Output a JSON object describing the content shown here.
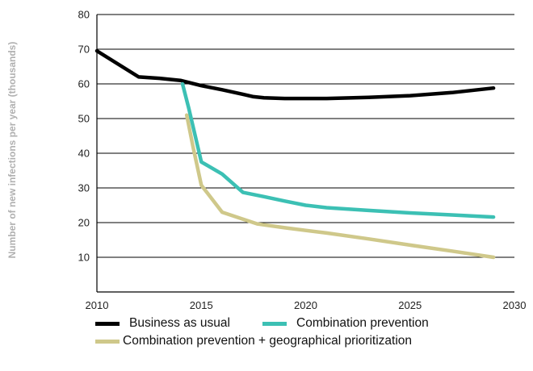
{
  "chart_data": {
    "type": "line",
    "title": "",
    "xlabel": "",
    "ylabel": "Number of new infections per year (thousands)",
    "xlim": [
      2010,
      2030
    ],
    "ylim": [
      0,
      80
    ],
    "x_ticks": [
      2010,
      2015,
      2020,
      2025,
      2030
    ],
    "y_ticks": [
      10,
      20,
      30,
      40,
      50,
      60,
      70,
      80
    ],
    "grid": "horizontal",
    "legend_position": "bottom",
    "series": [
      {
        "name": "Business as usual",
        "color": "#000000",
        "points": [
          [
            2010,
            69.5
          ],
          [
            2012,
            62
          ],
          [
            2013,
            61.6
          ],
          [
            2014,
            61
          ],
          [
            2015,
            59.5
          ],
          [
            2016,
            58.3
          ],
          [
            2017,
            57
          ],
          [
            2017.5,
            56.3
          ],
          [
            2018,
            56
          ],
          [
            2019,
            55.8
          ],
          [
            2021,
            55.8
          ],
          [
            2023,
            56.1
          ],
          [
            2025,
            56.6
          ],
          [
            2027,
            57.5
          ],
          [
            2029,
            58.8
          ]
        ]
      },
      {
        "name": "Combination prevention",
        "color": "#3cc0b4",
        "points": [
          [
            2014.1,
            60
          ],
          [
            2014.4,
            53
          ],
          [
            2015,
            37.5
          ],
          [
            2016,
            34
          ],
          [
            2017,
            28.7
          ],
          [
            2018,
            27.5
          ],
          [
            2019,
            26.2
          ],
          [
            2020,
            25
          ],
          [
            2021,
            24.3
          ],
          [
            2023,
            23.5
          ],
          [
            2025,
            22.8
          ],
          [
            2027,
            22.2
          ],
          [
            2029,
            21.6
          ]
        ]
      },
      {
        "name": "Combination prevention + geographical prioritization",
        "color": "#cfc88a",
        "points": [
          [
            2014.3,
            51
          ],
          [
            2014.6,
            42
          ],
          [
            2015,
            30.8
          ],
          [
            2016,
            23
          ],
          [
            2017,
            21
          ],
          [
            2017.7,
            19.6
          ],
          [
            2019,
            18.5
          ],
          [
            2021,
            17
          ],
          [
            2023,
            15.3
          ],
          [
            2025,
            13.5
          ],
          [
            2027,
            11.8
          ],
          [
            2029,
            10
          ]
        ]
      }
    ]
  }
}
